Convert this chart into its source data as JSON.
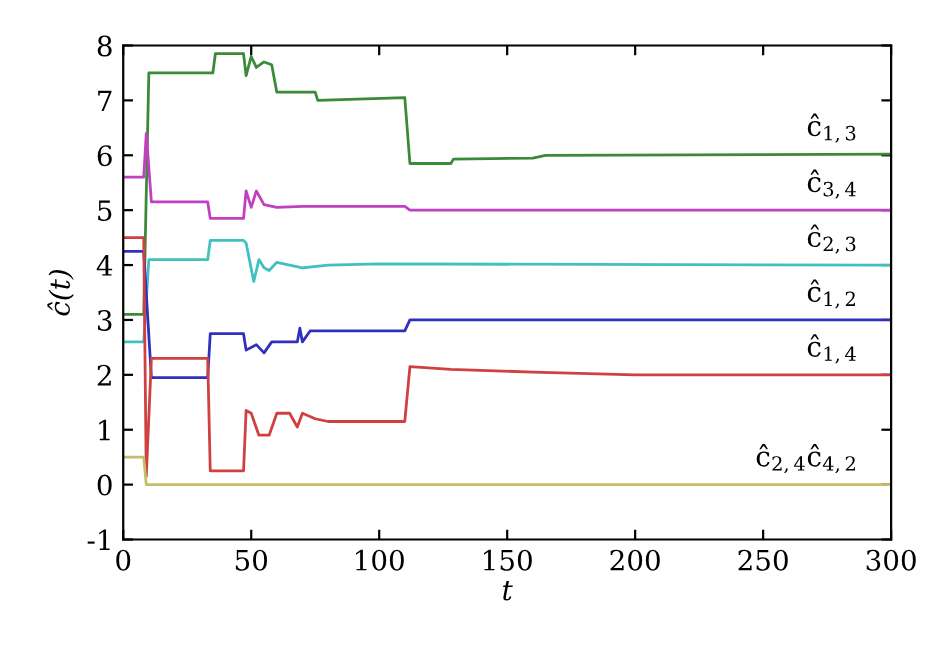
{
  "chart_data": {
    "type": "line",
    "xlabel": "t",
    "ylabel": "ĉ(t)",
    "xlim": [
      0,
      300
    ],
    "ylim": [
      -1,
      8
    ],
    "xticks": [
      0,
      50,
      100,
      150,
      200,
      250,
      300
    ],
    "yticks": [
      -1,
      0,
      1,
      2,
      3,
      4,
      5,
      6,
      7,
      8
    ],
    "grid": false,
    "legend": false,
    "line_style": "solid",
    "marker": "none",
    "series": [
      {
        "name": "ĉ$_{1,3}$",
        "color": "#3a8a3a",
        "x": [
          0,
          8,
          10,
          35,
          36,
          47,
          48,
          50,
          52,
          55,
          58,
          60,
          75,
          76,
          110,
          112,
          128,
          129,
          160,
          165,
          300
        ],
        "values": [
          3.1,
          3.1,
          7.5,
          7.5,
          7.85,
          7.85,
          7.45,
          7.8,
          7.6,
          7.7,
          7.65,
          7.15,
          7.15,
          7.0,
          7.05,
          5.85,
          5.85,
          5.93,
          5.95,
          6.0,
          6.02
        ]
      },
      {
        "name": "ĉ$_{3,4}$",
        "color": "#c040c0",
        "x": [
          0,
          8,
          9,
          11,
          33,
          34,
          47,
          48,
          50,
          52,
          55,
          60,
          70,
          110,
          112,
          300
        ],
        "values": [
          5.6,
          5.6,
          6.4,
          5.15,
          5.15,
          4.85,
          4.85,
          5.35,
          5.05,
          5.35,
          5.1,
          5.05,
          5.07,
          5.07,
          5.0,
          5.0
        ]
      },
      {
        "name": "ĉ$_{2,3}$",
        "color": "#40c0c0",
        "x": [
          0,
          8,
          10,
          33,
          34,
          47,
          48,
          51,
          53,
          55,
          57,
          60,
          65,
          70,
          80,
          100,
          300
        ],
        "values": [
          2.6,
          2.6,
          4.1,
          4.1,
          4.45,
          4.45,
          4.4,
          3.7,
          4.1,
          3.95,
          3.9,
          4.05,
          4.0,
          3.95,
          4.0,
          4.02,
          4.0
        ]
      },
      {
        "name": "ĉ$_{1,2}$",
        "color": "#3030c0",
        "x": [
          0,
          8,
          11,
          33,
          34,
          47,
          48,
          52,
          55,
          58,
          68,
          69,
          70,
          73,
          110,
          112,
          300
        ],
        "values": [
          4.25,
          4.25,
          1.95,
          1.95,
          2.75,
          2.75,
          2.45,
          2.55,
          2.4,
          2.6,
          2.6,
          2.85,
          2.6,
          2.8,
          2.8,
          3.0,
          3.0
        ]
      },
      {
        "name": "ĉ$_{1,4}$",
        "color": "#d04040",
        "x": [
          0,
          8,
          9,
          11,
          33,
          34,
          47,
          48,
          50,
          53,
          57,
          60,
          65,
          68,
          70,
          75,
          80,
          110,
          112,
          128,
          160,
          200,
          300
        ],
        "values": [
          4.5,
          4.5,
          0.15,
          2.3,
          2.3,
          0.25,
          0.25,
          1.35,
          1.3,
          0.9,
          0.9,
          1.3,
          1.3,
          1.05,
          1.3,
          1.2,
          1.15,
          1.15,
          2.15,
          2.1,
          2.05,
          2.0,
          2.0
        ]
      },
      {
        "name": "ĉ$_{2,4}$ĉ$_{4,2}$",
        "color": "#c8bc6a",
        "x": [
          0,
          8,
          9,
          300
        ],
        "values": [
          0.5,
          0.5,
          0.0,
          0.0
        ]
      }
    ]
  }
}
